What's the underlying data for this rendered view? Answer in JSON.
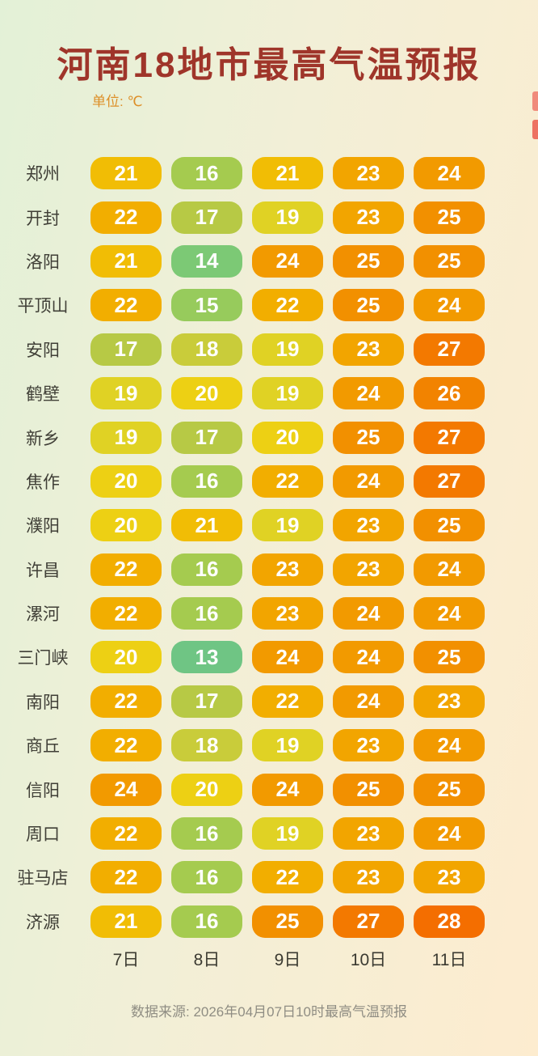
{
  "title": "河南18地市最高气温预报",
  "unit_label": "单位: ℃",
  "footer": "数据来源: 2026年04月07日10时最高气温预报",
  "chart_data": {
    "type": "heatmap",
    "title": "河南18地市最高气温预报",
    "unit": "℃",
    "categories": [
      "7日",
      "8日",
      "9日",
      "10日",
      "11日"
    ],
    "rows": [
      {
        "city": "郑州",
        "values": [
          21,
          16,
          21,
          23,
          24
        ]
      },
      {
        "city": "开封",
        "values": [
          22,
          17,
          19,
          23,
          25
        ]
      },
      {
        "city": "洛阳",
        "values": [
          21,
          14,
          24,
          25,
          25
        ]
      },
      {
        "city": "平顶山",
        "values": [
          22,
          15,
          22,
          25,
          24
        ]
      },
      {
        "city": "安阳",
        "values": [
          17,
          18,
          19,
          23,
          27
        ]
      },
      {
        "city": "鹤壁",
        "values": [
          19,
          20,
          19,
          24,
          26
        ]
      },
      {
        "city": "新乡",
        "values": [
          19,
          17,
          20,
          25,
          27
        ]
      },
      {
        "city": "焦作",
        "values": [
          20,
          16,
          22,
          24,
          27
        ]
      },
      {
        "city": "濮阳",
        "values": [
          20,
          21,
          19,
          23,
          25
        ]
      },
      {
        "city": "许昌",
        "values": [
          22,
          16,
          23,
          23,
          24
        ]
      },
      {
        "city": "漯河",
        "values": [
          22,
          16,
          23,
          24,
          24
        ]
      },
      {
        "city": "三门峡",
        "values": [
          20,
          13,
          24,
          24,
          25
        ]
      },
      {
        "city": "南阳",
        "values": [
          22,
          17,
          22,
          24,
          23
        ]
      },
      {
        "city": "商丘",
        "values": [
          22,
          18,
          19,
          23,
          24
        ]
      },
      {
        "city": "信阳",
        "values": [
          24,
          20,
          24,
          25,
          25
        ]
      },
      {
        "city": "周口",
        "values": [
          22,
          16,
          19,
          23,
          24
        ]
      },
      {
        "city": "驻马店",
        "values": [
          22,
          16,
          22,
          23,
          23
        ]
      },
      {
        "city": "济源",
        "values": [
          21,
          16,
          25,
          27,
          28
        ]
      }
    ],
    "value_range": [
      13,
      28
    ],
    "source": "数据来源: 2026年04月07日10时最高气温预报",
    "legend": "none",
    "grid": false
  },
  "temp_colors": {
    "13": "#6fc584",
    "14": "#7cc975",
    "15": "#97cb5c",
    "16": "#a5cb4f",
    "17": "#b7c945",
    "18": "#c9cc3a",
    "19": "#e0d224",
    "20": "#edd014",
    "21": "#f1bd05",
    "22": "#f2ae00",
    "23": "#f2a500",
    "24": "#f29a00",
    "25": "#f29000",
    "26": "#f28300",
    "27": "#f37900",
    "28": "#f46e00"
  },
  "colors": {
    "title": "#9f352a",
    "unit_label": "#dd8f28",
    "city_label": "#403f37",
    "day_label": "#3b3a31",
    "footer": "#8f8d83",
    "pill_text": "#ffffff",
    "background_left": "#e3f1d7",
    "background_right": "#fdeccf",
    "edge_marker_top": "#f08a7b",
    "edge_marker_bottom": "#ed7262"
  }
}
